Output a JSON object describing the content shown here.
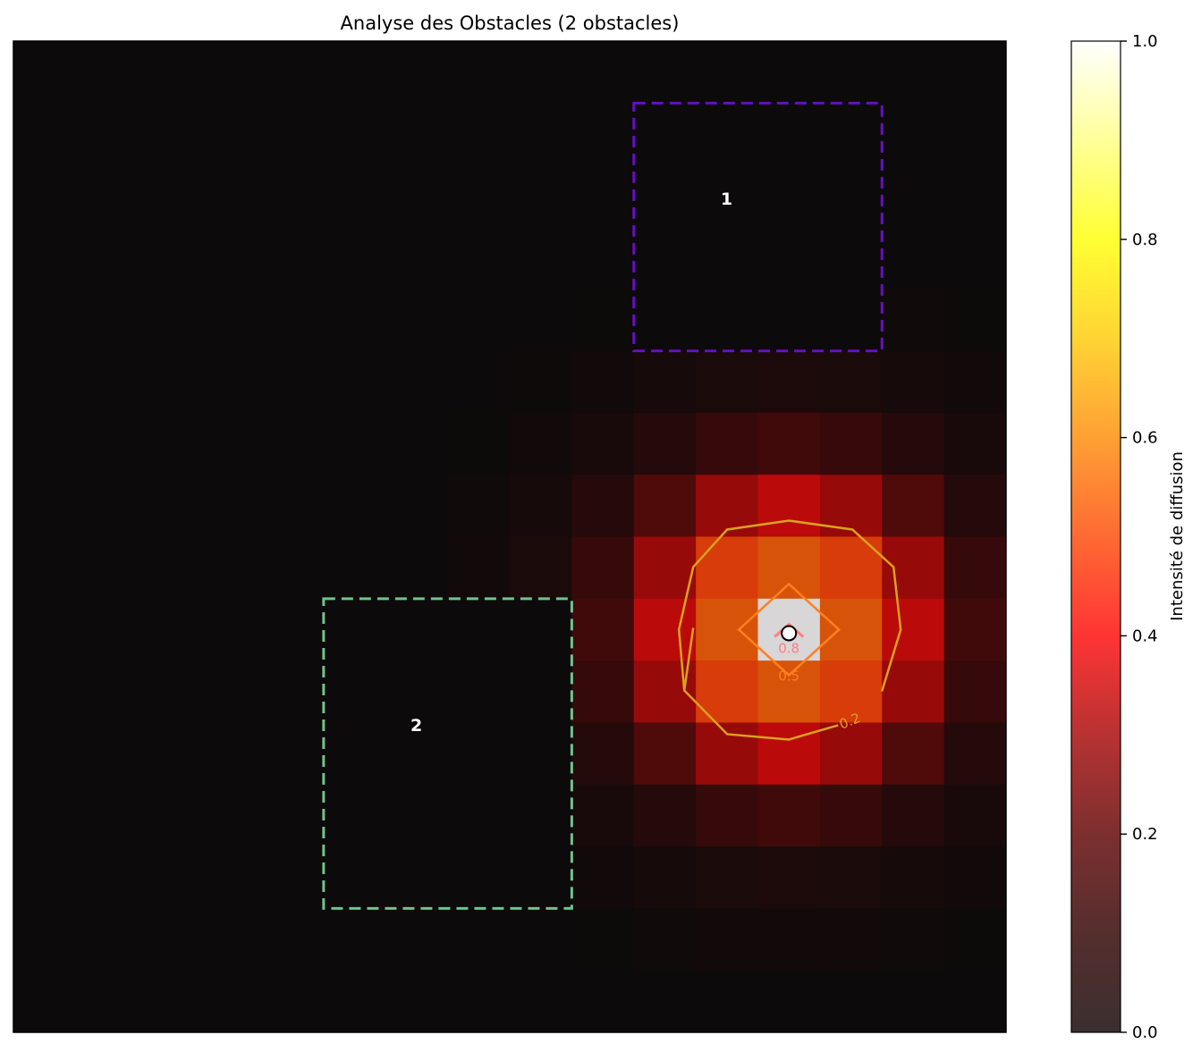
{
  "chart_data": {
    "type": "heatmap",
    "title": "Analyse des Obstacles (2 obstacles)",
    "grid": {
      "rows": 16,
      "cols": 16
    },
    "source": {
      "col": 12.5,
      "row": 9.5
    },
    "obstacles": [
      {
        "label": "1",
        "col0": 10,
        "col1": 14,
        "row0": 1,
        "row1": 5,
        "color": "#6a0dc6"
      },
      {
        "label": "2",
        "col0": 5,
        "col1": 9,
        "row0": 9,
        "row1": 14,
        "color": "#6fc48b"
      }
    ],
    "contours": [
      {
        "level": "0.8",
        "color": "#ff7f7f"
      },
      {
        "level": "0.5",
        "color": "#ff7f1e"
      },
      {
        "level": "0.2",
        "color": "#d9a21e"
      }
    ],
    "colorbar": {
      "label": "Intensité de diffusion",
      "min": 0.0,
      "max": 1.0,
      "ticks": [
        "0.0",
        "0.2",
        "0.4",
        "0.6",
        "0.8",
        "1.0"
      ],
      "colormap": "hot",
      "alpha": 0.8,
      "background": "#3a3030"
    }
  }
}
